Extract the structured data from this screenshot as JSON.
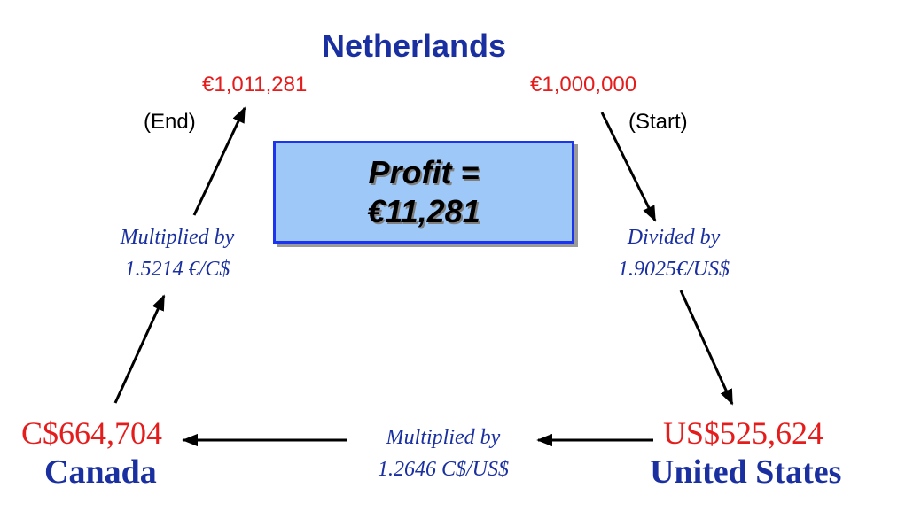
{
  "nodes": {
    "netherlands": {
      "country": "Netherlands",
      "end_amount": "€1,011,281",
      "start_amount": "€1,000,000",
      "end_tag": "(End)",
      "start_tag": "(Start)"
    },
    "united_states": {
      "country": "United States",
      "amount": "US$525,624"
    },
    "canada": {
      "country": "Canada",
      "amount": "C$664,704"
    }
  },
  "operations": {
    "nl_to_us": {
      "line1": "Divided by",
      "line2": "1.9025€/US$"
    },
    "us_to_ca": {
      "line1": "Multiplied by",
      "line2": "1.2646 C$/US$"
    },
    "ca_to_nl": {
      "line1": "Multiplied by",
      "line2": "1.5214 €/C$"
    }
  },
  "profit": {
    "line1": "Profit =",
    "line2": "€11,281"
  },
  "colors": {
    "country": "#1a2fa0",
    "amount": "#e51c1c",
    "operation": "#1a2fa0",
    "profit_fill": "#9dc8f7",
    "profit_border": "#1c34f0",
    "arrow": "#000000"
  }
}
